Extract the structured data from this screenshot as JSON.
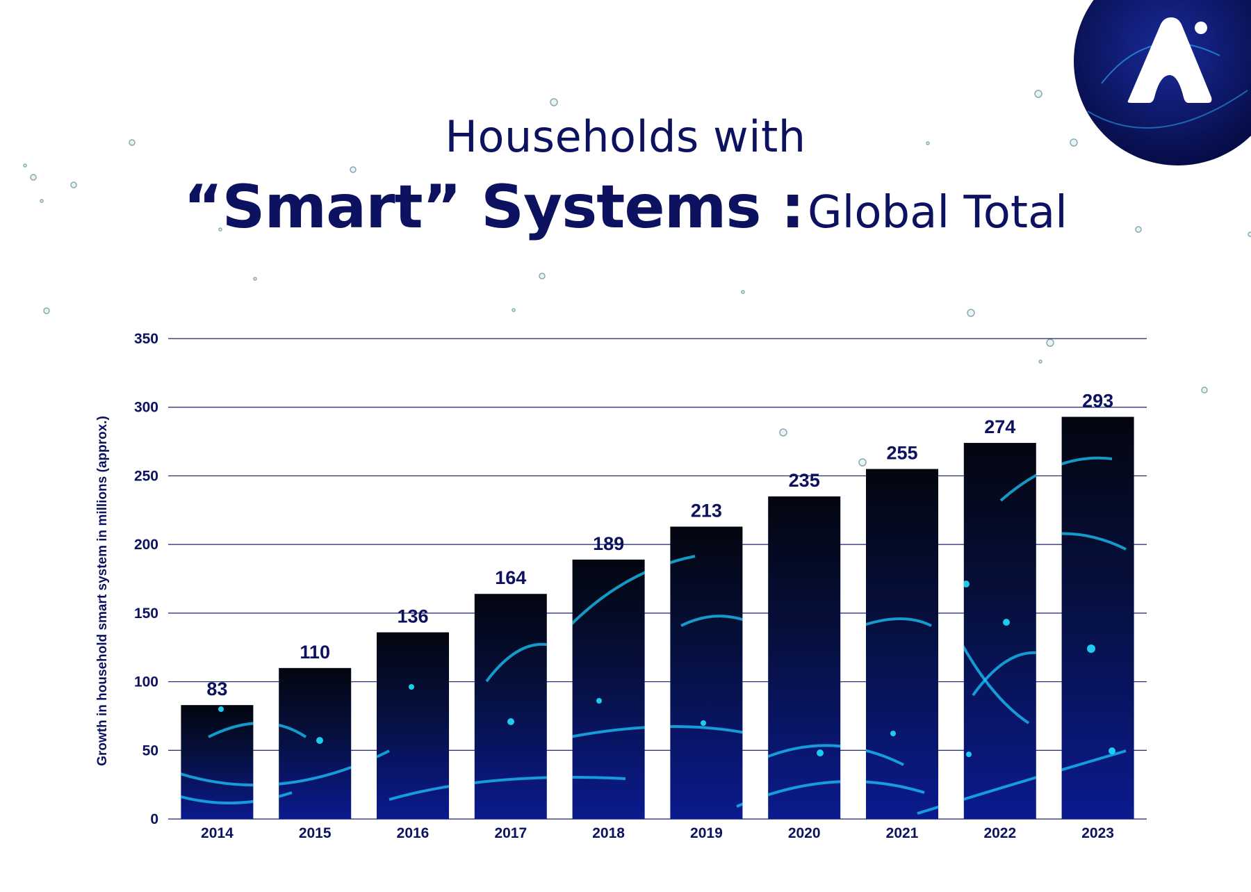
{
  "title": {
    "line1": "Households with",
    "line2_strong": "“Smart” Systems :",
    "line2_light": "Global Total"
  },
  "logo": {
    "icon": "brand-logo-icon"
  },
  "colors": {
    "text": "#0c1160",
    "bar_top": "#040818",
    "bar_bottom": "#0a1a8a",
    "glow": "#19c9ff",
    "grid": "#1a2070"
  },
  "chart_data": {
    "type": "bar",
    "categories": [
      "2014",
      "2015",
      "2016",
      "2017",
      "2018",
      "2019",
      "2020",
      "2021",
      "2022",
      "2023"
    ],
    "values": [
      83,
      110,
      136,
      164,
      189,
      213,
      235,
      255,
      274,
      293
    ],
    "ylabel": "Growth in household smart system in millions (approx.)",
    "ylim": [
      0,
      350
    ],
    "yticks": [
      "0",
      "50",
      "100",
      "150",
      "200",
      "250",
      "300",
      "350"
    ],
    "grid": true
  }
}
